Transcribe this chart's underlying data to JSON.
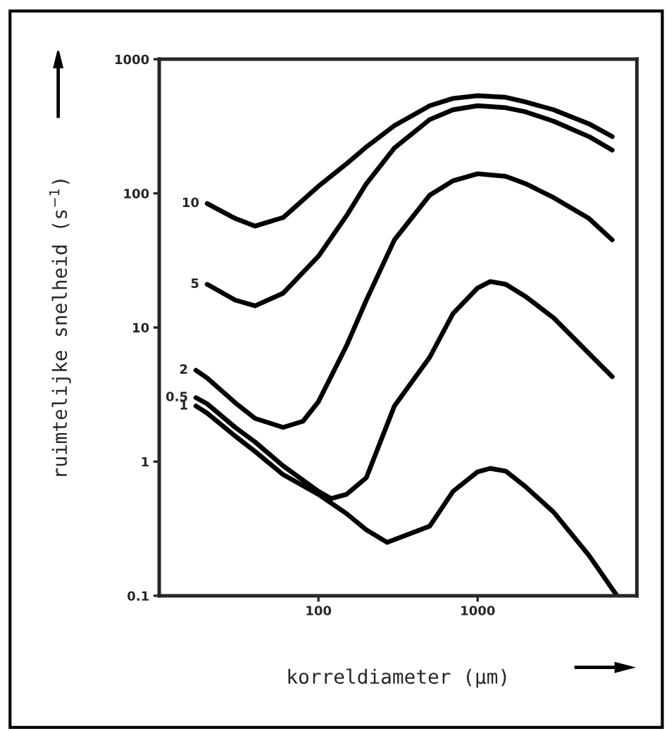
{
  "chart_data": {
    "type": "line",
    "xlabel": "korreldiameter (µm)",
    "ylabel": "ruimtelijke snelheid (s$^{−1}$)",
    "log": "xy",
    "xlim": [
      10,
      10000
    ],
    "ylim": [
      0.1,
      1000
    ],
    "xticks": [
      100,
      1000
    ],
    "yticks": [
      0.1,
      1,
      10,
      100,
      1000
    ],
    "grid": false,
    "series": [
      {
        "name": "10",
        "color": "#000000",
        "x": [
          20,
          30,
          40,
          60,
          100,
          150,
          200,
          300,
          500,
          700,
          1000,
          1500,
          2000,
          3000,
          5000,
          7000
        ],
        "values": [
          84,
          65,
          57,
          66,
          113,
          166,
          222,
          320,
          450,
          510,
          535,
          520,
          480,
          420,
          330,
          265
        ]
      },
      {
        "name": "5",
        "color": "#000000",
        "x": [
          20,
          30,
          40,
          60,
          100,
          150,
          200,
          300,
          500,
          700,
          1000,
          1500,
          2000,
          3000,
          5000,
          7000
        ],
        "values": [
          21,
          16,
          14.5,
          18,
          34,
          68,
          118,
          218,
          355,
          420,
          450,
          435,
          405,
          345,
          265,
          210
        ]
      },
      {
        "name": "2",
        "color": "#000000",
        "x": [
          17,
          20,
          30,
          40,
          60,
          80,
          100,
          150,
          200,
          300,
          500,
          700,
          1000,
          1500,
          2000,
          3000,
          5000,
          7000
        ],
        "values": [
          4.8,
          4.2,
          2.75,
          2.1,
          1.8,
          2.0,
          2.8,
          7.3,
          16,
          45,
          97,
          124,
          140,
          134,
          118,
          93,
          65,
          45
        ]
      },
      {
        "name": "0.5",
        "color": "#000000",
        "x": [
          17,
          20,
          30,
          40,
          60,
          100,
          120,
          150,
          200,
          300,
          500,
          700,
          1000,
          1200,
          1500,
          2000,
          3000,
          5000,
          7000
        ],
        "values": [
          3.0,
          2.7,
          1.8,
          1.4,
          0.93,
          0.6,
          0.53,
          0.57,
          0.76,
          2.6,
          6.0,
          12.7,
          19.7,
          22,
          21,
          17,
          11.8,
          6.4,
          4.3
        ]
      },
      {
        "name": "1",
        "color": "#000000",
        "x": [
          17,
          20,
          30,
          40,
          60,
          100,
          150,
          200,
          270,
          500,
          700,
          1000,
          1200,
          1500,
          2000,
          3000,
          5000,
          7500
        ],
        "values": [
          2.6,
          2.3,
          1.55,
          1.19,
          0.8,
          0.57,
          0.41,
          0.31,
          0.25,
          0.33,
          0.6,
          0.84,
          0.89,
          0.85,
          0.65,
          0.42,
          0.2,
          0.1
        ]
      }
    ]
  }
}
